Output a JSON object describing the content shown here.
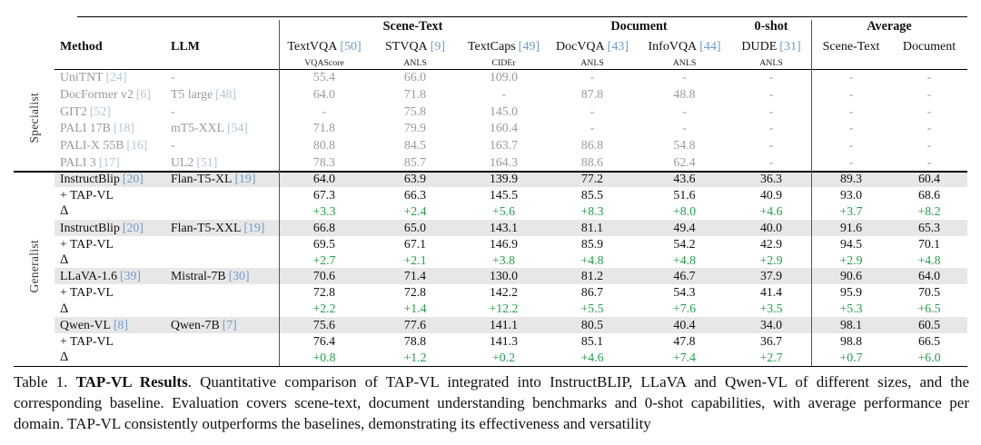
{
  "table": {
    "group_headers": [
      {
        "label": "Scene-Text"
      },
      {
        "label": "Document"
      },
      {
        "label": "0-shot"
      },
      {
        "label": "Average"
      }
    ],
    "method_header": "Method",
    "llm_header": "LLM",
    "columns": [
      {
        "name": "TextVQA",
        "ref": "[50]",
        "metric": "VQAScore"
      },
      {
        "name": "STVQA",
        "ref": "[9]",
        "metric": "ANLS"
      },
      {
        "name": "TextCaps",
        "ref": "[49]",
        "metric": "CIDEr"
      },
      {
        "name": "DocVQA",
        "ref": "[43]",
        "metric": "ANLS"
      },
      {
        "name": "InfoVQA",
        "ref": "[44]",
        "metric": "ANLS"
      },
      {
        "name": "DUDE",
        "ref": "[31]",
        "metric": "ANLS"
      },
      {
        "name": "Scene-Text",
        "ref": "",
        "metric": ""
      },
      {
        "name": "Document",
        "ref": "",
        "metric": ""
      }
    ],
    "sections": [
      {
        "label": "Specialist",
        "rows": [
          {
            "type": "specialist",
            "method": "UniTNT",
            "method_ref": "[24]",
            "llm": "-",
            "llm_ref": "",
            "values": [
              "55.4",
              "66.0",
              "109.0",
              "-",
              "-",
              "-",
              "-",
              "-"
            ]
          },
          {
            "type": "specialist",
            "method": "DocFormer v2",
            "method_ref": "[6]",
            "llm": "T5 large",
            "llm_ref": "[48]",
            "values": [
              "64.0",
              "71.8",
              "-",
              "87.8",
              "48.8",
              "-",
              "-",
              "-"
            ]
          },
          {
            "type": "specialist",
            "method": "GIT2",
            "method_ref": "[52]",
            "llm": "-",
            "llm_ref": "",
            "values": [
              "-",
              "75.8",
              "145.0",
              "-",
              "-",
              "-",
              "-",
              "-"
            ]
          },
          {
            "type": "specialist",
            "method": "PALI 17B",
            "method_ref": "[18]",
            "llm": "mT5-XXL",
            "llm_ref": "[54]",
            "values": [
              "71.8",
              "79.9",
              "160.4",
              "-",
              "-",
              "-",
              "-",
              "-"
            ]
          },
          {
            "type": "specialist",
            "method": "PALI-X 55B",
            "method_ref": "[16]",
            "llm": "-",
            "llm_ref": "",
            "values": [
              "80.8",
              "84.5",
              "163.7",
              "86.8",
              "54.8",
              "-",
              "-",
              "-"
            ]
          },
          {
            "type": "specialist",
            "method": "PALI 3",
            "method_ref": "[17]",
            "llm": "UL2",
            "llm_ref": "[51]",
            "values": [
              "78.3",
              "85.7",
              "164.3",
              "88.6",
              "62.4",
              "-",
              "-",
              "-"
            ]
          }
        ]
      },
      {
        "label": "Generalist",
        "rows": [
          {
            "type": "baseline",
            "method": "InstructBlip",
            "method_ref": "[20]",
            "llm": "Flan-T5-XL",
            "llm_ref": "[19]",
            "values": [
              "64.0",
              "63.9",
              "139.9",
              "77.2",
              "43.6",
              "36.3",
              "89.3",
              "60.4"
            ]
          },
          {
            "type": "tapvl",
            "method": "+ TAP-VL",
            "method_ref": "",
            "llm": "",
            "llm_ref": "",
            "values": [
              "67.3",
              "66.3",
              "145.5",
              "85.5",
              "51.6",
              "40.9",
              "93.0",
              "68.6"
            ]
          },
          {
            "type": "delta",
            "method": "Δ",
            "method_ref": "",
            "llm": "",
            "llm_ref": "",
            "values": [
              "+3.3",
              "+2.4",
              "+5.6",
              "+8.3",
              "+8.0",
              "+4.6",
              "+3.7",
              "+8.2"
            ]
          },
          {
            "type": "baseline",
            "method": "InstructBlip",
            "method_ref": "[20]",
            "llm": "Flan-T5-XXL",
            "llm_ref": "[19]",
            "values": [
              "66.8",
              "65.0",
              "143.1",
              "81.1",
              "49.4",
              "40.0",
              "91.6",
              "65.3"
            ]
          },
          {
            "type": "tapvl",
            "method": "+ TAP-VL",
            "method_ref": "",
            "llm": "",
            "llm_ref": "",
            "values": [
              "69.5",
              "67.1",
              "146.9",
              "85.9",
              "54.2",
              "42.9",
              "94.5",
              "70.1"
            ]
          },
          {
            "type": "delta",
            "method": "Δ",
            "method_ref": "",
            "llm": "",
            "llm_ref": "",
            "values": [
              "+2.7",
              "+2.1",
              "+3.8",
              "+4.8",
              "+4.8",
              "+2.9",
              "+2.9",
              "+4.8"
            ]
          },
          {
            "type": "baseline",
            "method": "LLaVA-1.6",
            "method_ref": "[39]",
            "llm": "Mistral-7B",
            "llm_ref": "[30]",
            "values": [
              "70.6",
              "71.4",
              "130.0",
              "81.2",
              "46.7",
              "37.9",
              "90.6",
              "64.0"
            ]
          },
          {
            "type": "tapvl",
            "method": "+ TAP-VL",
            "method_ref": "",
            "llm": "",
            "llm_ref": "",
            "values": [
              "72.8",
              "72.8",
              "142.2",
              "86.7",
              "54.3",
              "41.4",
              "95.9",
              "70.5"
            ]
          },
          {
            "type": "delta",
            "method": "Δ",
            "method_ref": "",
            "llm": "",
            "llm_ref": "",
            "values": [
              "+2.2",
              "+1.4",
              "+12.2",
              "+5.5",
              "+7.6",
              "+3.5",
              "+5.3",
              "+6.5"
            ]
          },
          {
            "type": "baseline",
            "method": "Qwen-VL",
            "method_ref": "[8]",
            "llm": "Qwen-7B",
            "llm_ref": "[7]",
            "values": [
              "75.6",
              "77.6",
              "141.1",
              "80.5",
              "40.4",
              "34.0",
              "98.1",
              "60.5"
            ]
          },
          {
            "type": "tapvl",
            "method": "+ TAP-VL",
            "method_ref": "",
            "llm": "",
            "llm_ref": "",
            "values": [
              "76.4",
              "78.8",
              "141.3",
              "85.1",
              "47.8",
              "36.7",
              "98.8",
              "66.5"
            ]
          },
          {
            "type": "delta",
            "method": "Δ",
            "method_ref": "",
            "llm": "",
            "llm_ref": "",
            "values": [
              "+0.8",
              "+1.2",
              "+0.2",
              "+4.6",
              "+7.4",
              "+2.7",
              "+0.7",
              "+6.0"
            ]
          }
        ]
      }
    ],
    "colors": {
      "delta_green": "#22a04a",
      "citation_blue": "#6e9dc9",
      "specialist_gray": "#9a9a9a",
      "row_shade": "#e7e7e7"
    }
  },
  "caption": {
    "prefix": "Table 1.",
    "title": "TAP-VL Results",
    "body": ". Quantitative comparison of TAP-VL integrated into InstructBLIP, LLaVA and Qwen-VL of different sizes, and the corresponding baseline. Evaluation covers scene-text, document understanding benchmarks and 0-shot capabilities, with average performance per domain. TAP-VL consistently outperforms the baselines, demonstrating its effectiveness and versatility"
  }
}
